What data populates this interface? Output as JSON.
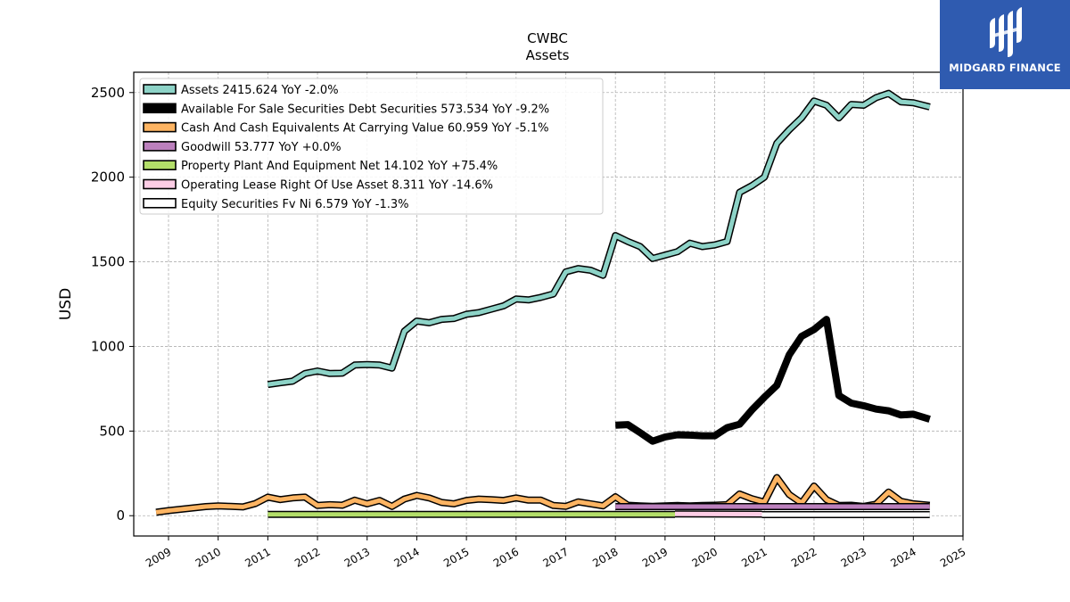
{
  "brand": {
    "name": "MIDGARD FINANCE",
    "color": "#2f5bb0"
  },
  "chart_data": {
    "type": "line",
    "title": "CWBC",
    "subtitle": "Assets",
    "xlabel": "",
    "ylabel": "USD",
    "xlim": [
      2008.3,
      2025.0
    ],
    "ylim": [
      -120,
      2620
    ],
    "x_ticks": [
      "2009",
      "2010",
      "2011",
      "2012",
      "2013",
      "2014",
      "2015",
      "2016",
      "2017",
      "2018",
      "2019",
      "2020",
      "2021",
      "2022",
      "2023",
      "2024",
      "2025"
    ],
    "y_ticks": [
      "0",
      "500",
      "1000",
      "1500",
      "2000",
      "2500"
    ],
    "grid": true,
    "legend_position": "top-left",
    "series": [
      {
        "name": "Assets",
        "legend": "Assets  2415.624 YoY -2.0%",
        "color": "#8dd3c7",
        "style": "outlined",
        "width": 5,
        "points": [
          [
            2011.0,
            775
          ],
          [
            2011.25,
            785
          ],
          [
            2011.5,
            795
          ],
          [
            2011.75,
            840
          ],
          [
            2012.0,
            855
          ],
          [
            2012.25,
            840
          ],
          [
            2012.5,
            842
          ],
          [
            2012.75,
            890
          ],
          [
            2013.0,
            893
          ],
          [
            2013.25,
            890
          ],
          [
            2013.5,
            872
          ],
          [
            2013.75,
            1090
          ],
          [
            2014.0,
            1150
          ],
          [
            2014.25,
            1140
          ],
          [
            2014.5,
            1160
          ],
          [
            2014.75,
            1165
          ],
          [
            2015.0,
            1190
          ],
          [
            2015.25,
            1200
          ],
          [
            2015.5,
            1220
          ],
          [
            2015.75,
            1240
          ],
          [
            2016.0,
            1280
          ],
          [
            2016.25,
            1275
          ],
          [
            2016.5,
            1290
          ],
          [
            2016.75,
            1310
          ],
          [
            2017.0,
            1440
          ],
          [
            2017.25,
            1460
          ],
          [
            2017.5,
            1450
          ],
          [
            2017.75,
            1420
          ],
          [
            2018.0,
            1655
          ],
          [
            2018.25,
            1620
          ],
          [
            2018.5,
            1590
          ],
          [
            2018.75,
            1520
          ],
          [
            2019.0,
            1540
          ],
          [
            2019.25,
            1560
          ],
          [
            2019.5,
            1610
          ],
          [
            2019.75,
            1590
          ],
          [
            2020.0,
            1600
          ],
          [
            2020.25,
            1620
          ],
          [
            2020.5,
            1910
          ],
          [
            2020.75,
            1950
          ],
          [
            2021.0,
            2000
          ],
          [
            2021.25,
            2200
          ],
          [
            2021.5,
            2280
          ],
          [
            2021.75,
            2350
          ],
          [
            2022.0,
            2450
          ],
          [
            2022.25,
            2425
          ],
          [
            2022.5,
            2350
          ],
          [
            2022.75,
            2430
          ],
          [
            2023.0,
            2425
          ],
          [
            2023.25,
            2470
          ],
          [
            2023.5,
            2495
          ],
          [
            2023.75,
            2445
          ],
          [
            2024.0,
            2440
          ],
          [
            2024.33,
            2415
          ]
        ]
      },
      {
        "name": "Available For Sale Securities Debt Securities",
        "legend": "Available For Sale Securities Debt Securities  573.534 YoY -9.2%",
        "color": "#000000",
        "style": "solid",
        "width": 8,
        "points": [
          [
            2018.0,
            535
          ],
          [
            2018.25,
            538
          ],
          [
            2018.5,
            490
          ],
          [
            2018.75,
            440
          ],
          [
            2019.0,
            465
          ],
          [
            2019.25,
            478
          ],
          [
            2019.5,
            476
          ],
          [
            2019.75,
            472
          ],
          [
            2020.0,
            472
          ],
          [
            2020.25,
            520
          ],
          [
            2020.5,
            540
          ],
          [
            2020.75,
            625
          ],
          [
            2021.0,
            700
          ],
          [
            2021.25,
            770
          ],
          [
            2021.5,
            950
          ],
          [
            2021.75,
            1060
          ],
          [
            2022.0,
            1100
          ],
          [
            2022.25,
            1160
          ],
          [
            2022.5,
            710
          ],
          [
            2022.75,
            665
          ],
          [
            2023.0,
            650
          ],
          [
            2023.25,
            630
          ],
          [
            2023.5,
            620
          ],
          [
            2023.75,
            595
          ],
          [
            2024.0,
            600
          ],
          [
            2024.33,
            570
          ]
        ]
      },
      {
        "name": "Cash And Cash Equivalents At Carrying Value",
        "legend": "Cash And Cash Equivalents At Carrying Value  60.959 YoY -5.1%",
        "color": "#fdb462",
        "style": "outlined",
        "width": 5,
        "points": [
          [
            2008.75,
            20
          ],
          [
            2009.0,
            30
          ],
          [
            2009.25,
            38
          ],
          [
            2009.5,
            46
          ],
          [
            2009.75,
            54
          ],
          [
            2010.0,
            58
          ],
          [
            2010.25,
            55
          ],
          [
            2010.5,
            52
          ],
          [
            2010.75,
            72
          ],
          [
            2011.0,
            110
          ],
          [
            2011.25,
            95
          ],
          [
            2011.5,
            105
          ],
          [
            2011.75,
            110
          ],
          [
            2012.0,
            60
          ],
          [
            2012.25,
            65
          ],
          [
            2012.5,
            62
          ],
          [
            2012.75,
            92
          ],
          [
            2013.0,
            70
          ],
          [
            2013.25,
            90
          ],
          [
            2013.5,
            55
          ],
          [
            2013.75,
            98
          ],
          [
            2014.0,
            120
          ],
          [
            2014.25,
            105
          ],
          [
            2014.5,
            78
          ],
          [
            2014.75,
            70
          ],
          [
            2015.0,
            90
          ],
          [
            2015.25,
            98
          ],
          [
            2015.5,
            95
          ],
          [
            2015.75,
            90
          ],
          [
            2016.0,
            105
          ],
          [
            2016.25,
            92
          ],
          [
            2016.5,
            92
          ],
          [
            2016.75,
            60
          ],
          [
            2017.0,
            55
          ],
          [
            2017.25,
            82
          ],
          [
            2017.5,
            70
          ],
          [
            2017.75,
            58
          ],
          [
            2018.0,
            112
          ],
          [
            2018.25,
            62
          ],
          [
            2018.5,
            58
          ],
          [
            2018.75,
            55
          ],
          [
            2019.0,
            58
          ],
          [
            2019.25,
            60
          ],
          [
            2019.5,
            58
          ],
          [
            2019.75,
            60
          ],
          [
            2020.0,
            62
          ],
          [
            2020.25,
            65
          ],
          [
            2020.5,
            128
          ],
          [
            2020.75,
            100
          ],
          [
            2021.0,
            80
          ],
          [
            2021.25,
            225
          ],
          [
            2021.5,
            125
          ],
          [
            2021.75,
            75
          ],
          [
            2022.0,
            175
          ],
          [
            2022.25,
            95
          ],
          [
            2022.5,
            60
          ],
          [
            2022.75,
            62
          ],
          [
            2023.0,
            55
          ],
          [
            2023.25,
            68
          ],
          [
            2023.5,
            140
          ],
          [
            2023.75,
            85
          ],
          [
            2024.0,
            70
          ],
          [
            2024.33,
            61
          ]
        ]
      },
      {
        "name": "Goodwill",
        "legend": "Goodwill  53.777 YoY +0.0%",
        "color": "#bc80bd",
        "style": "outlined",
        "width": 5,
        "points": [
          [
            2018.0,
            53.8
          ],
          [
            2024.33,
            53.8
          ]
        ]
      },
      {
        "name": "Property Plant And Equipment Net",
        "legend": "Property Plant And Equipment Net  14.102 YoY +75.4%",
        "color": "#b3de69",
        "style": "outlined",
        "width": 5,
        "points": [
          [
            2011.0,
            8
          ],
          [
            2019.2,
            8
          ]
        ]
      },
      {
        "name": "Operating Lease Right Of Use Asset",
        "legend": "Operating Lease Right Of Use Asset  8.311 YoY -14.6%",
        "color": "#fccde5",
        "style": "outlined",
        "width": 5,
        "points": [
          [
            2019.2,
            10
          ],
          [
            2020.95,
            9
          ]
        ]
      },
      {
        "name": "Equity Securities Fv Ni",
        "legend": "Equity Securities Fv Ni  6.579 YoY -1.3%",
        "color": "#ffffff",
        "style": "outlined",
        "width": 5,
        "points": [
          [
            2020.95,
            6.6
          ],
          [
            2024.33,
            6.6
          ]
        ]
      }
    ]
  }
}
